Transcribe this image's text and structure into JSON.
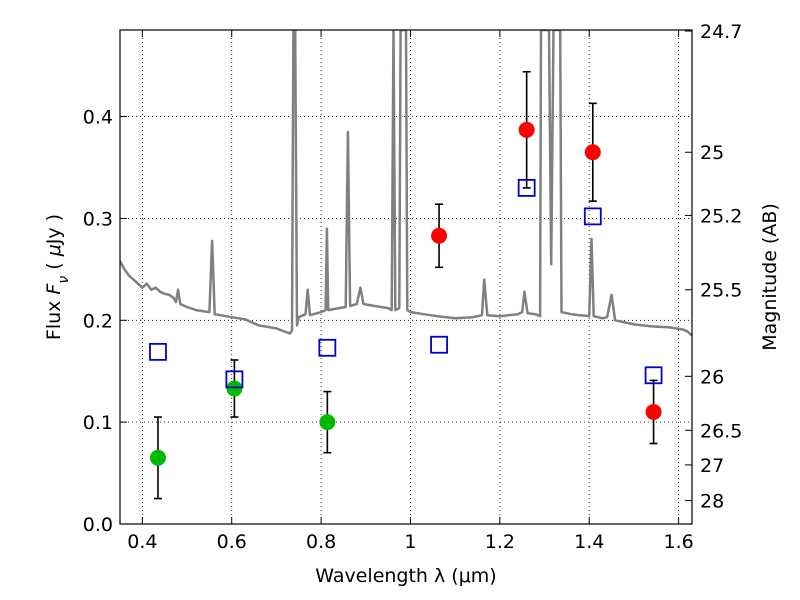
{
  "chart_data": {
    "type": "scatter",
    "title": "",
    "xlabel": "Wavelength  λ (μm)",
    "ylabel": "Flux  F_ν  ( μJy )",
    "ylabel_right": "Magnitude (AB)",
    "xlim": [
      0.35,
      1.63
    ],
    "ylim": [
      0.0,
      0.485
    ],
    "grid": true,
    "x_ticks": [
      0.4,
      0.6,
      0.8,
      1.0,
      1.2,
      1.4,
      1.6
    ],
    "x_tick_labels": [
      "0.4",
      "0.6",
      "0.8",
      "1",
      "1.2",
      "1.4",
      "1.6"
    ],
    "y_ticks": [
      0.0,
      0.1,
      0.2,
      0.3,
      0.4
    ],
    "y_tick_labels": [
      "0.0",
      "0.1",
      "0.2",
      "0.3",
      "0.4"
    ],
    "right_ticks": [
      {
        "label": "24.7",
        "flux": 0.484
      },
      {
        "label": "25",
        "flux": 0.365
      },
      {
        "label": "25.2",
        "flux": 0.303
      },
      {
        "label": "25.5",
        "flux": 0.23
      },
      {
        "label": "26",
        "flux": 0.145
      },
      {
        "label": "26.5",
        "flux": 0.092
      },
      {
        "label": "27",
        "flux": 0.058
      },
      {
        "label": "28",
        "flux": 0.023
      }
    ],
    "series": [
      {
        "color": "#00bb00",
        "marker": "circle",
        "points": [
          {
            "x": 0.435,
            "y": 0.065,
            "err": 0.04
          },
          {
            "x": 0.606,
            "y": 0.133,
            "err": 0.028
          },
          {
            "x": 0.814,
            "y": 0.1,
            "err": 0.03
          }
        ]
      },
      {
        "color": "#ff0000",
        "marker": "circle",
        "points": [
          {
            "x": 1.064,
            "y": 0.283,
            "err": 0.031
          },
          {
            "x": 1.26,
            "y": 0.387,
            "err": 0.057
          },
          {
            "x": 1.408,
            "y": 0.365,
            "err": 0.048
          },
          {
            "x": 1.544,
            "y": 0.11,
            "err": 0.031
          }
        ]
      },
      {
        "color": "#0000cc",
        "marker": "open-square",
        "points": [
          {
            "x": 0.435,
            "y": 0.169
          },
          {
            "x": 0.606,
            "y": 0.142
          },
          {
            "x": 0.814,
            "y": 0.173
          },
          {
            "x": 1.064,
            "y": 0.176
          },
          {
            "x": 1.26,
            "y": 0.33
          },
          {
            "x": 1.408,
            "y": 0.302
          },
          {
            "x": 1.544,
            "y": 0.146
          }
        ]
      },
      {
        "color": "#808080",
        "marker": "line",
        "points": [
          [
            0.35,
            0.258
          ],
          [
            0.36,
            0.25
          ],
          [
            0.37,
            0.244
          ],
          [
            0.38,
            0.24
          ],
          [
            0.39,
            0.236
          ],
          [
            0.4,
            0.232
          ],
          [
            0.41,
            0.236
          ],
          [
            0.42,
            0.23
          ],
          [
            0.43,
            0.232
          ],
          [
            0.44,
            0.228
          ],
          [
            0.45,
            0.226
          ],
          [
            0.46,
            0.225
          ],
          [
            0.47,
            0.222
          ],
          [
            0.475,
            0.218
          ],
          [
            0.48,
            0.23
          ],
          [
            0.485,
            0.216
          ],
          [
            0.5,
            0.213
          ],
          [
            0.52,
            0.21
          ],
          [
            0.55,
            0.208
          ],
          [
            0.556,
            0.278
          ],
          [
            0.562,
            0.206
          ],
          [
            0.6,
            0.203
          ],
          [
            0.63,
            0.201
          ],
          [
            0.65,
            0.197
          ],
          [
            0.66,
            0.195
          ],
          [
            0.7,
            0.192
          ],
          [
            0.73,
            0.187
          ],
          [
            0.735,
            0.19
          ],
          [
            0.738,
            0.485
          ],
          [
            0.742,
            0.485
          ],
          [
            0.746,
            0.195
          ],
          [
            0.75,
            0.203
          ],
          [
            0.765,
            0.206
          ],
          [
            0.77,
            0.23
          ],
          [
            0.775,
            0.205
          ],
          [
            0.8,
            0.208
          ],
          [
            0.81,
            0.21
          ],
          [
            0.813,
            0.29
          ],
          [
            0.816,
            0.21
          ],
          [
            0.84,
            0.212
          ],
          [
            0.855,
            0.213
          ],
          [
            0.86,
            0.385
          ],
          [
            0.865,
            0.214
          ],
          [
            0.88,
            0.216
          ],
          [
            0.888,
            0.232
          ],
          [
            0.895,
            0.216
          ],
          [
            0.92,
            0.214
          ],
          [
            0.95,
            0.212
          ],
          [
            0.958,
            0.21
          ],
          [
            0.962,
            0.485
          ],
          [
            0.966,
            0.21
          ],
          [
            0.975,
            0.212
          ],
          [
            0.978,
            0.485
          ],
          [
            0.99,
            0.485
          ],
          [
            0.993,
            0.21
          ],
          [
            1.0,
            0.208
          ],
          [
            1.03,
            0.206
          ],
          [
            1.06,
            0.204
          ],
          [
            1.1,
            0.202
          ],
          [
            1.14,
            0.203
          ],
          [
            1.16,
            0.205
          ],
          [
            1.165,
            0.24
          ],
          [
            1.172,
            0.205
          ],
          [
            1.2,
            0.204
          ],
          [
            1.24,
            0.206
          ],
          [
            1.25,
            0.208
          ],
          [
            1.255,
            0.228
          ],
          [
            1.262,
            0.207
          ],
          [
            1.28,
            0.206
          ],
          [
            1.29,
            0.204
          ],
          [
            1.292,
            0.485
          ],
          [
            1.31,
            0.485
          ],
          [
            1.315,
            0.255
          ],
          [
            1.32,
            0.485
          ],
          [
            1.335,
            0.485
          ],
          [
            1.338,
            0.208
          ],
          [
            1.36,
            0.206
          ],
          [
            1.38,
            0.205
          ],
          [
            1.4,
            0.204
          ],
          [
            1.405,
            0.28
          ],
          [
            1.41,
            0.204
          ],
          [
            1.43,
            0.202
          ],
          [
            1.44,
            0.203
          ],
          [
            1.45,
            0.225
          ],
          [
            1.458,
            0.2
          ],
          [
            1.5,
            0.196
          ],
          [
            1.54,
            0.194
          ],
          [
            1.58,
            0.193
          ],
          [
            1.61,
            0.191
          ],
          [
            1.62,
            0.189
          ],
          [
            1.63,
            0.185
          ]
        ]
      }
    ]
  }
}
